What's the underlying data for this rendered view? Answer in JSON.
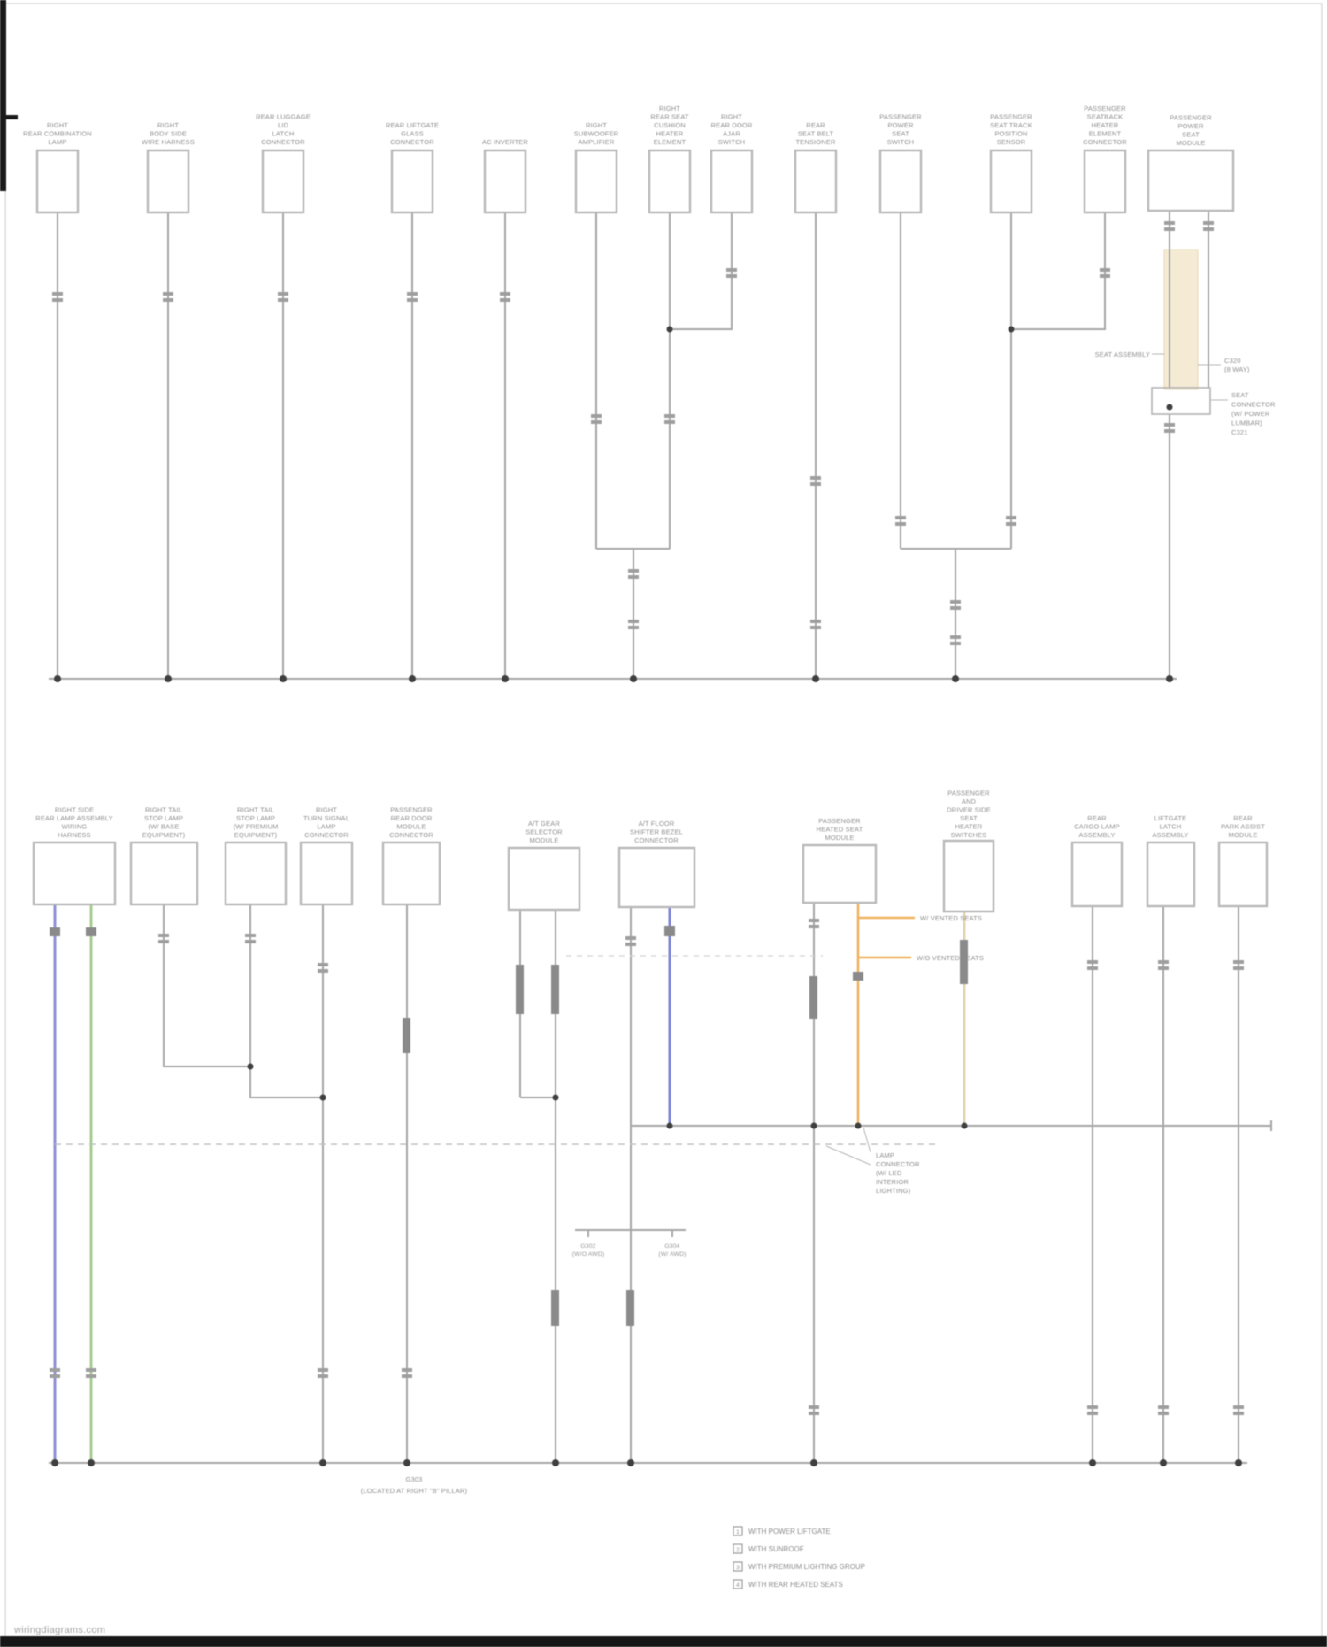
{
  "page": {
    "watermark": "wiringdiagrams.com"
  },
  "colors": {
    "wire_gray": "#a6a6a6",
    "violet": "#8f8fd6",
    "green": "#a5cc90",
    "blue": "#7f85d2",
    "orange": "#f0b25e",
    "tan": "#e2d2ae",
    "tan_strip": "#f5ebd4",
    "splice_dot": "#3f3f3f",
    "text_gray": "#8e8e8e"
  },
  "top_section": {
    "components": [
      {
        "label_lines": [
          "RIGHT",
          "REAR COMBINATION",
          "LAMP"
        ]
      },
      {
        "label_lines": [
          "RIGHT",
          "BODY SIDE",
          "WIRE HARNESS"
        ]
      },
      {
        "label_lines": [
          "REAR LUGGAGE",
          "LID",
          "LATCH",
          "CONNECTOR"
        ]
      },
      {
        "label_lines": [
          "REAR LIFTGATE",
          "GLASS",
          "CONNECTOR"
        ]
      },
      {
        "label_lines": [
          "AC INVERTER"
        ]
      },
      {
        "label_lines": [
          "RIGHT",
          "SUBWOOFER",
          "AMPLIFIER"
        ]
      },
      {
        "label_lines": [
          "RIGHT",
          "REAR SEAT",
          "CUSHION",
          "HEATER",
          "ELEMENT"
        ]
      },
      {
        "label_lines": [
          "RIGHT",
          "REAR DOOR",
          "AJAR",
          "SWITCH"
        ]
      },
      {
        "label_lines": [
          "REAR",
          "SEAT BELT",
          "TENSIONER"
        ]
      },
      {
        "label_lines": [
          "PASSENGER",
          "POWER",
          "SEAT",
          "SWITCH"
        ]
      },
      {
        "label_lines": [
          "PASSENGER",
          "SEAT TRACK",
          "POSITION",
          "SENSOR"
        ]
      },
      {
        "label_lines": [
          "PASSENGER",
          "SEATBACK",
          "HEATER",
          "ELEMENT",
          "CONNECTOR"
        ]
      },
      {
        "label_lines": [
          "PASSENGER",
          "POWER",
          "SEAT",
          "MODULE"
        ]
      }
    ],
    "annotations": {
      "assembly_label": "SEAT ASSEMBLY",
      "connector_note_lines": [
        "C320",
        "(8 WAY)"
      ],
      "option_block_lines": [
        "SEAT",
        "CONNECTOR",
        "(W/ POWER",
        "LUMBAR)",
        "C321"
      ]
    }
  },
  "bottom_section": {
    "components": [
      {
        "label_lines": [
          "RIGHT SIDE",
          "REAR LAMP ASSEMBLY",
          "WIRING",
          "HARNESS"
        ]
      },
      {
        "label_lines": [
          "RIGHT TAIL",
          "STOP LAMP",
          "(W/ BASE",
          "EQUIPMENT)"
        ]
      },
      {
        "label_lines": [
          "RIGHT TAIL",
          "STOP LAMP",
          "(W/ PREMIUM",
          "EQUIPMENT)"
        ]
      },
      {
        "label_lines": [
          "RIGHT",
          "TURN SIGNAL",
          "LAMP",
          "CONNECTOR"
        ]
      },
      {
        "label_lines": [
          "PASSENGER",
          "REAR DOOR",
          "MODULE",
          "CONNECTOR"
        ]
      },
      {
        "label_lines": [
          "A/T GEAR",
          "SELECTOR",
          "MODULE"
        ]
      },
      {
        "label_lines": [
          "A/T FLOOR",
          "SHIFTER BEZEL",
          "CONNECTOR"
        ]
      },
      {
        "label_lines": [
          "PASSENGER",
          "HEATED SEAT",
          "MODULE"
        ]
      },
      {
        "label_lines": [
          "PASSENGER",
          "AND",
          "DRIVER SIDE",
          "SEAT",
          "HEATER",
          "SWITCHES"
        ]
      },
      {
        "label_lines": [
          "REAR",
          "CARGO LAMP",
          "ASSEMBLY"
        ]
      },
      {
        "label_lines": [
          "LIFTGATE",
          "LATCH",
          "ASSEMBLY"
        ]
      },
      {
        "label_lines": [
          "REAR",
          "PARK ASSIST",
          "MODULE"
        ]
      }
    ],
    "stub_label_1": "W/ VENTED SEATS",
    "stub_label_2": "W/O VENTED SEATS",
    "tbar_left_lines": [
      "G302",
      "(W/O AWD)"
    ],
    "tbar_right_lines": [
      "G304",
      "(W/ AWD)"
    ],
    "mid_block_lines": [
      "LAMP",
      "CONNECTOR",
      "(W/ LED",
      "INTERIOR",
      "LIGHTING)"
    ],
    "ground_label_lines": [
      "G303",
      "(LOCATED AT RIGHT \"B\" PILLAR)"
    ]
  },
  "legend": {
    "items": [
      {
        "num": "1",
        "text": "WITH POWER LIFTGATE"
      },
      {
        "num": "2",
        "text": "WITH SUNROOF"
      },
      {
        "num": "3",
        "text": "WITH PREMIUM LIGHTING GROUP"
      },
      {
        "num": "4",
        "text": "WITH REAR HEATED SEATS"
      }
    ]
  }
}
